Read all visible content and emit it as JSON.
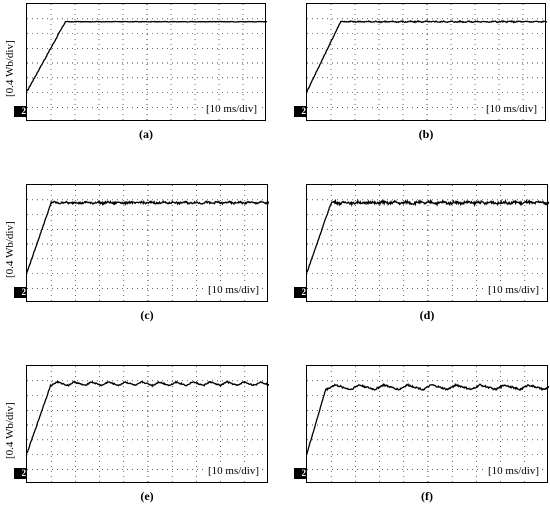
{
  "chart_data": [
    {
      "type": "line",
      "caption": "(a)",
      "ylabel": "[0.4 Wb/div]",
      "xlabel": "[10 ms/div]",
      "channel": "2",
      "rise_end": 0.16,
      "ripple_amp": 0.02,
      "ripple_period": 0.04,
      "ripple_shape": "noise",
      "level": 0.85,
      "start": 0.26
    },
    {
      "type": "line",
      "caption": "(b)",
      "ylabel": "",
      "xlabel": "[10 ms/div]",
      "channel": "2",
      "rise_end": 0.14,
      "ripple_amp": 0.05,
      "ripple_period": 0.035,
      "ripple_shape": "noise",
      "level": 0.85,
      "start": 0.26
    },
    {
      "type": "line",
      "caption": "(c)",
      "ylabel": "[0.4 Wb/div]",
      "xlabel": "[10 ms/div]",
      "channel": "2",
      "rise_end": 0.1,
      "ripple_amp": 0.09,
      "ripple_period": 0.045,
      "ripple_shape": "noise",
      "level": 0.85,
      "start": 0.26
    },
    {
      "type": "line",
      "caption": "(d)",
      "ylabel": "",
      "xlabel": "[10 ms/div]",
      "channel": "2",
      "rise_end": 0.1,
      "ripple_amp": 0.12,
      "ripple_period": 0.05,
      "ripple_shape": "noise",
      "level": 0.85,
      "start": 0.26
    },
    {
      "type": "line",
      "caption": "(e)",
      "ylabel": "[0.4 Wb/div]",
      "xlabel": "[10 ms/div]",
      "channel": "2",
      "rise_end": 0.1,
      "ripple_amp": 0.17,
      "ripple_period": 0.07,
      "ripple_shape": "wave",
      "level": 0.85,
      "start": 0.26
    },
    {
      "type": "line",
      "caption": "(f)",
      "ylabel": "",
      "xlabel": "[10 ms/div]",
      "channel": "2",
      "rise_end": 0.08,
      "ripple_amp": 0.22,
      "ripple_period": 0.1,
      "ripple_shape": "wave",
      "level": 0.82,
      "start": 0.26
    }
  ]
}
